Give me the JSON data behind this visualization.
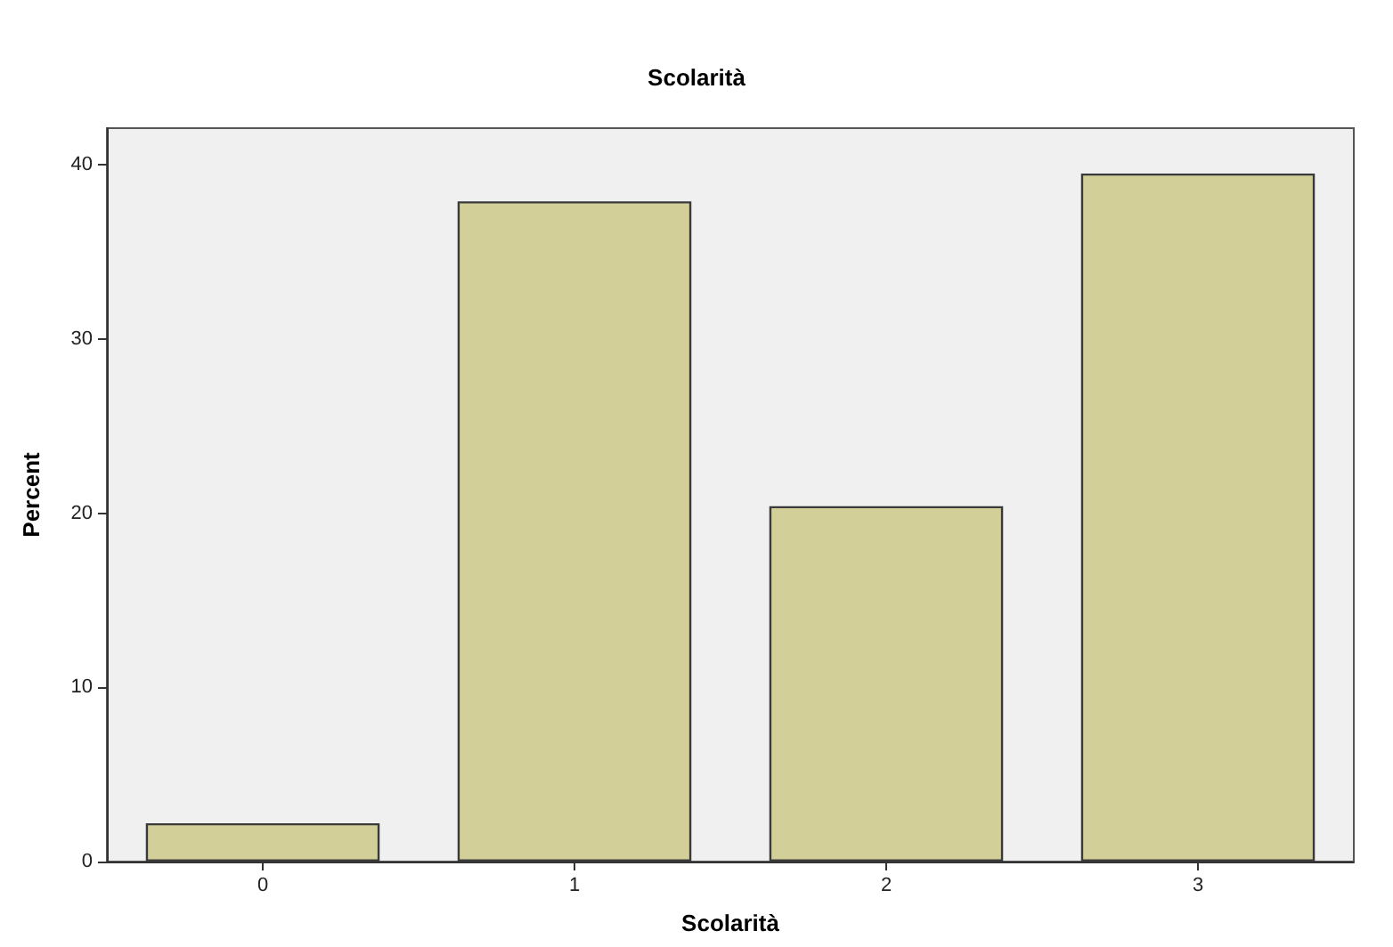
{
  "chart_data": {
    "type": "bar",
    "title": "Scolarità",
    "xlabel": "Scolarità",
    "ylabel": "Percent",
    "categories": [
      "0",
      "1",
      "2",
      "3"
    ],
    "values": [
      2.2,
      37.9,
      20.4,
      39.5
    ],
    "color": "#d3cf98",
    "ylim": [
      0,
      42.1
    ],
    "yticks": [
      0,
      10,
      20,
      30,
      40
    ],
    "grid": false
  }
}
